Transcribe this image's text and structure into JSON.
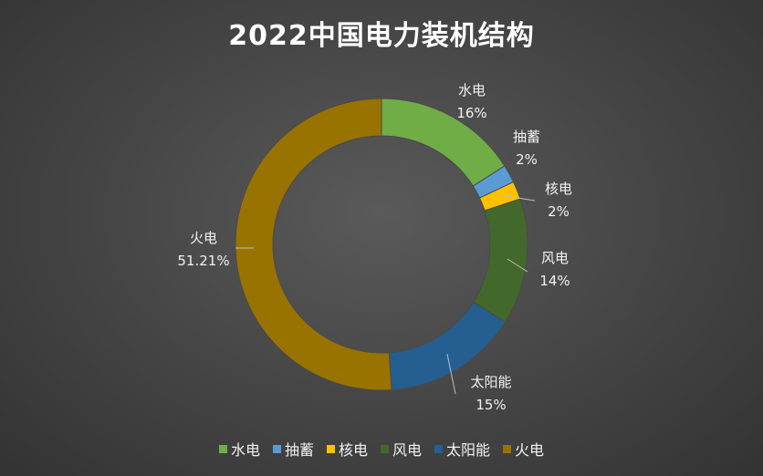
{
  "chart_data": {
    "type": "pie",
    "title": "2022中国电力装机结构",
    "donut": true,
    "legend_position": "bottom",
    "slices": [
      {
        "name": "水电",
        "value": 16,
        "label": "16%",
        "color": "#70ad47"
      },
      {
        "name": "抽蓄",
        "value": 2,
        "label": "2%",
        "color": "#5b9bd5"
      },
      {
        "name": "核电",
        "value": 2,
        "label": "2%",
        "color": "#ffc000"
      },
      {
        "name": "风电",
        "value": 14,
        "label": "14%",
        "color": "#43682b"
      },
      {
        "name": "太阳能",
        "value": 15,
        "label": "15%",
        "color": "#255e91"
      },
      {
        "name": "火电",
        "value": 51.21,
        "label": "51.21%",
        "color": "#997300"
      }
    ]
  }
}
